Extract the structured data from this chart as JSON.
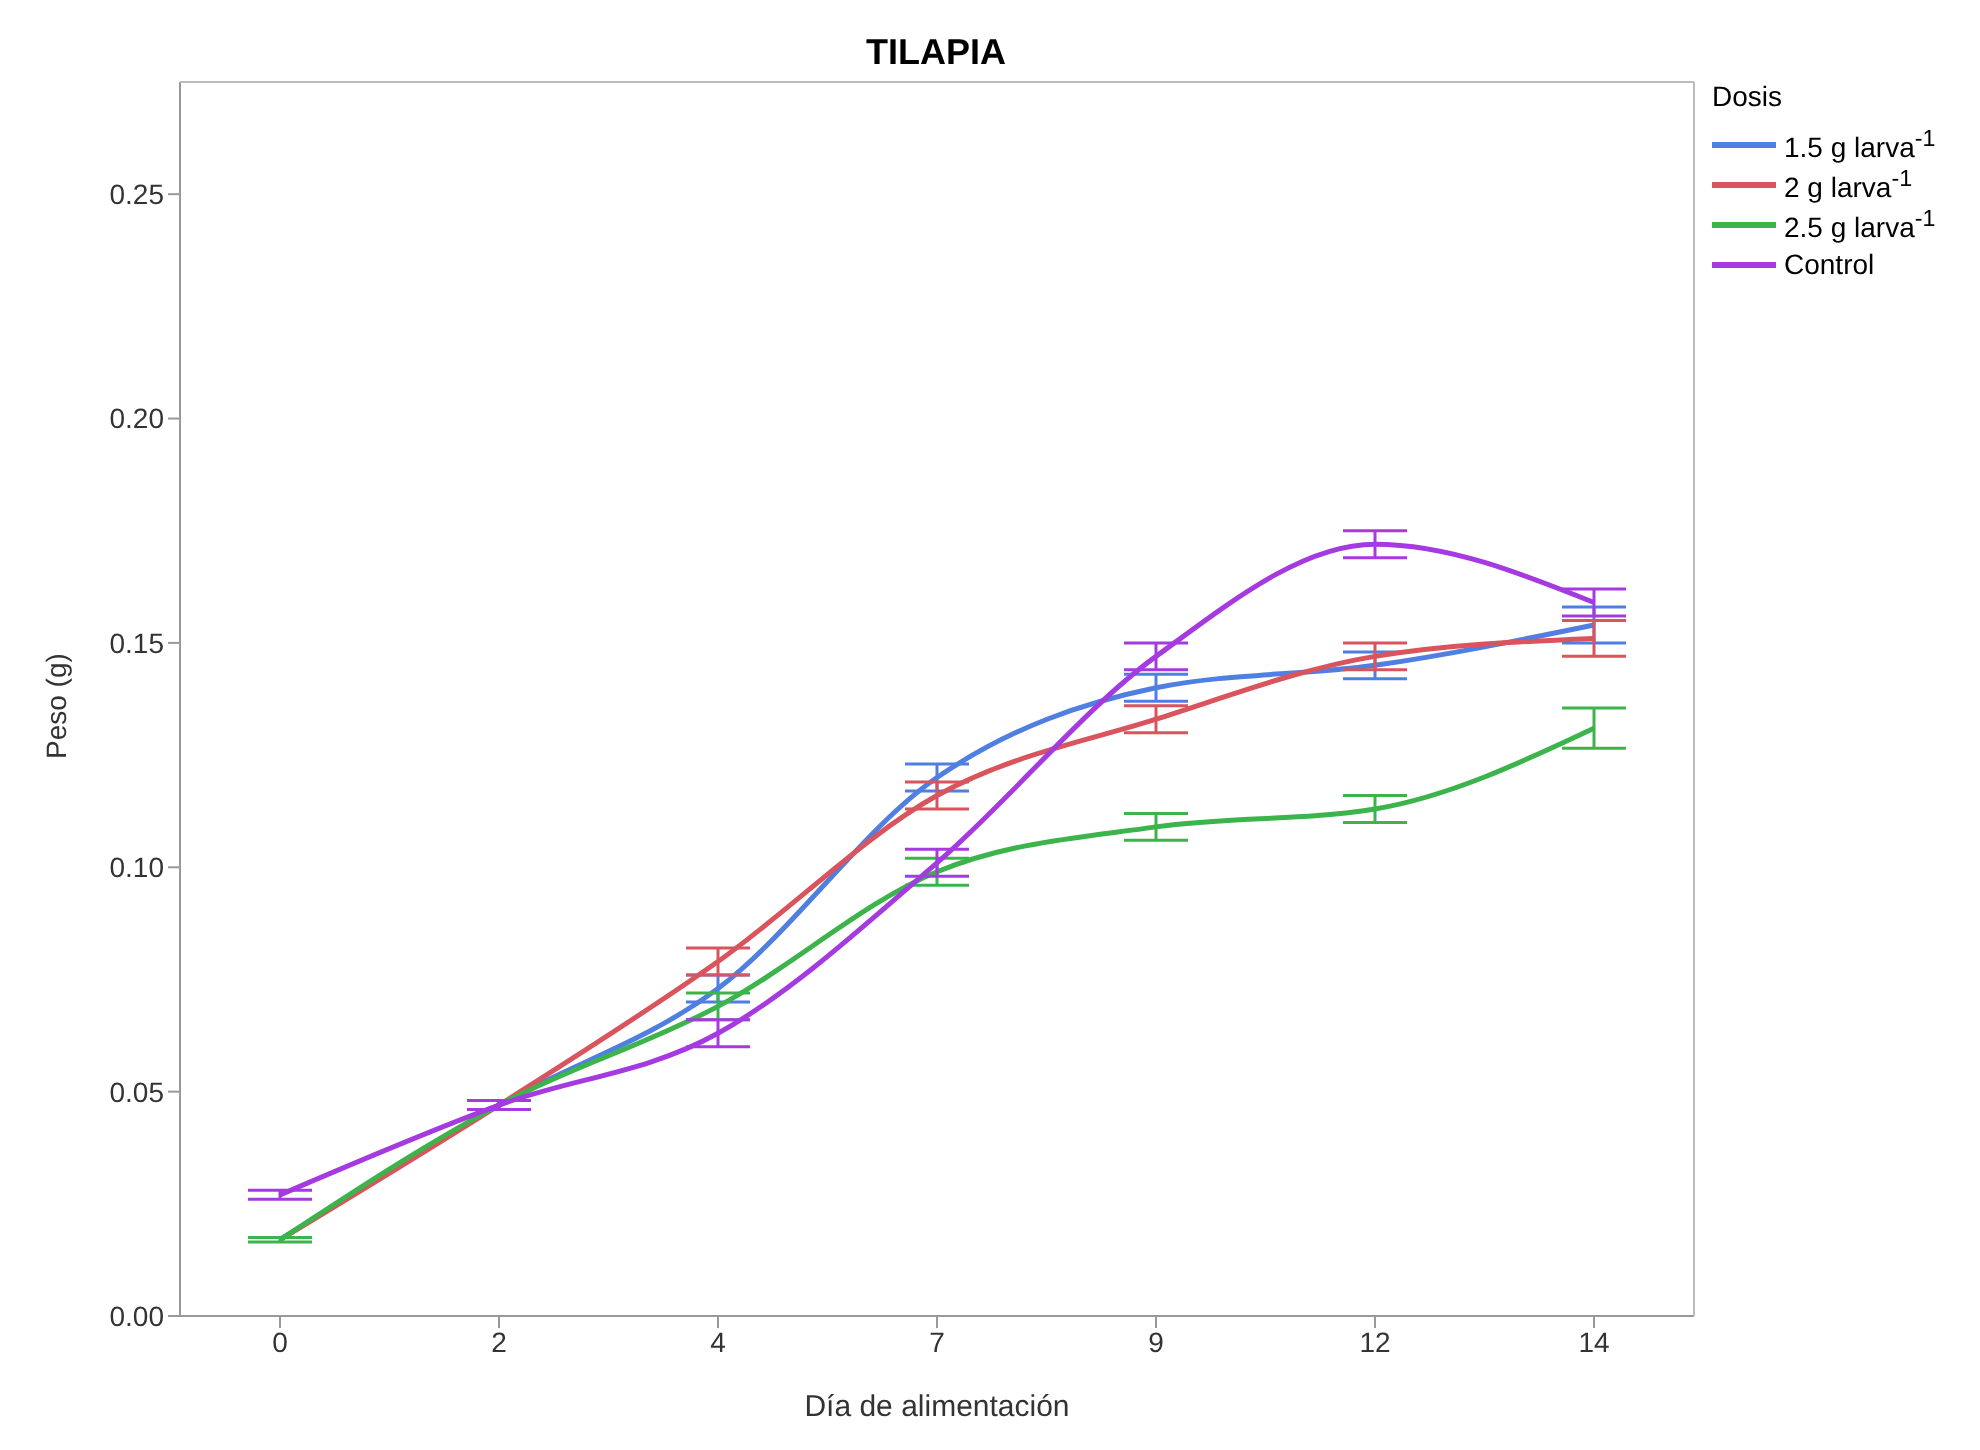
{
  "chart_data": {
    "type": "line",
    "title": "TILAPIA",
    "xlabel": "Día de alimentación",
    "ylabel": "Peso (g)",
    "legend_title": "Dosis",
    "categories": [
      "0",
      "2",
      "4",
      "7",
      "9",
      "12",
      "14"
    ],
    "series": [
      {
        "name": "1.5 g larva$^{-1}$",
        "color": "#4f7fe0",
        "values": [
          0.017,
          0.047,
          0.073,
          0.12,
          0.14,
          0.145,
          0.154
        ],
        "errors": [
          null,
          0.001,
          0.003,
          0.003,
          0.003,
          0.003,
          0.004
        ]
      },
      {
        "name": "2 g larva$^{-1}$",
        "color": "#d9545c",
        "values": [
          0.017,
          0.047,
          0.079,
          0.116,
          0.133,
          0.147,
          0.151
        ],
        "errors": [
          null,
          0.001,
          0.003,
          0.003,
          0.003,
          0.003,
          0.004
        ]
      },
      {
        "name": "2.5 g larva$^{-1}$",
        "color": "#3cb44b",
        "values": [
          0.017,
          0.047,
          0.069,
          0.099,
          0.109,
          0.113,
          0.131
        ],
        "errors": [
          0.0005,
          0.001,
          0.003,
          0.003,
          0.003,
          0.003,
          0.0045
        ]
      },
      {
        "name": "Control",
        "color": "#a53ae0",
        "values": [
          0.027,
          0.047,
          0.063,
          0.101,
          0.147,
          0.172,
          0.159
        ],
        "errors": [
          0.001,
          0.001,
          0.003,
          0.003,
          0.003,
          0.003,
          0.003
        ]
      }
    ],
    "ylim": [
      0,
      0.275
    ],
    "yticks": [
      {
        "value": 0,
        "label": "0.00"
      },
      {
        "value": 0.05,
        "label": "0.05"
      },
      {
        "value": 0.1,
        "label": "0.10"
      },
      {
        "value": 0.15,
        "label": "0.15"
      },
      {
        "value": 0.2,
        "label": "0.20"
      },
      {
        "value": 0.25,
        "label": "0.25"
      }
    ],
    "grid": false,
    "legend": "right",
    "marker": "none",
    "line_style": "solid"
  }
}
